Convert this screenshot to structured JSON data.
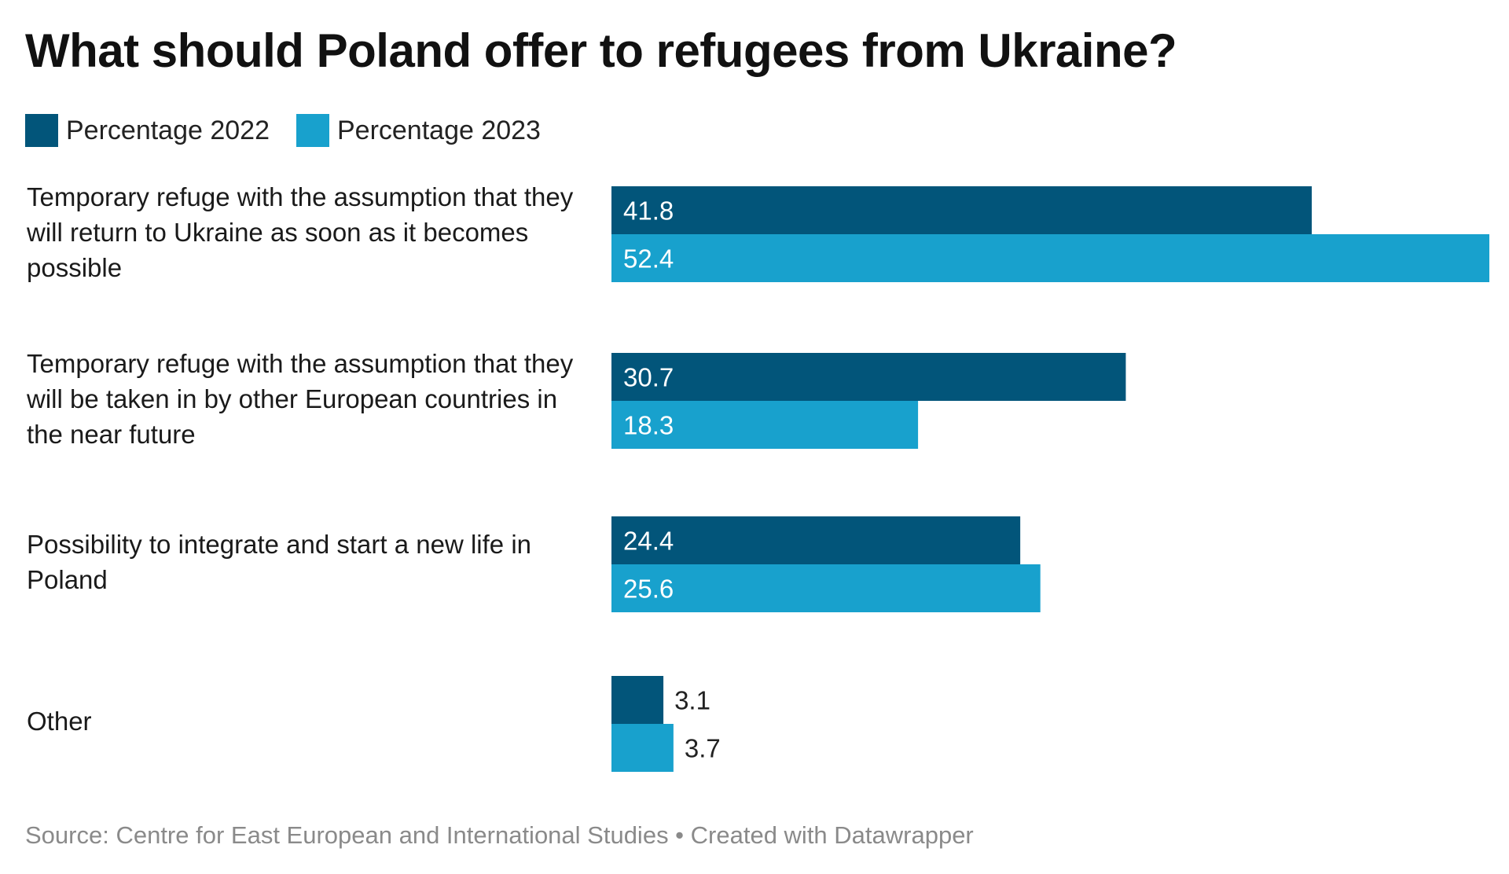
{
  "chart_data": {
    "type": "bar",
    "orientation": "horizontal",
    "title": "What should Poland offer to refugees from Ukraine?",
    "xlabel": "",
    "ylabel": "",
    "xlim": [
      0,
      52.4
    ],
    "grid": false,
    "legend_position": "top-left",
    "categories": [
      "Temporary refuge with the assumption that they will return to Ukraine as soon as it becomes possible",
      "Temporary refuge with the assumption that they will be taken in by other European countries in the near future",
      "Possibility to integrate and start a new life in Poland",
      "Other"
    ],
    "series": [
      {
        "name": "Percentage 2022",
        "color": "#02557a",
        "values": [
          41.8,
          30.7,
          24.4,
          3.1
        ],
        "labels": [
          "41.8",
          "30.7",
          "24.4",
          "3.1"
        ]
      },
      {
        "name": "Percentage 2023",
        "color": "#18a1cd",
        "values": [
          52.4,
          18.3,
          25.6,
          3.7
        ],
        "labels": [
          "52.4",
          "18.3",
          "25.6",
          "3.7"
        ]
      }
    ]
  },
  "legend": [
    {
      "label": "Percentage 2022",
      "color": "#02557a"
    },
    {
      "label": "Percentage 2023",
      "color": "#18a1cd"
    }
  ],
  "category_labels": [
    "Temporary refuge with the assumption that they will return to Ukraine as soon as it becomes possible",
    "Temporary refuge with the assumption that they will be taken in by other European countries in the near future",
    "Possibility to integrate and start a new life in Poland",
    "Other"
  ],
  "footer": "Source: Centre for East European and International Studies • Created with Datawrapper"
}
